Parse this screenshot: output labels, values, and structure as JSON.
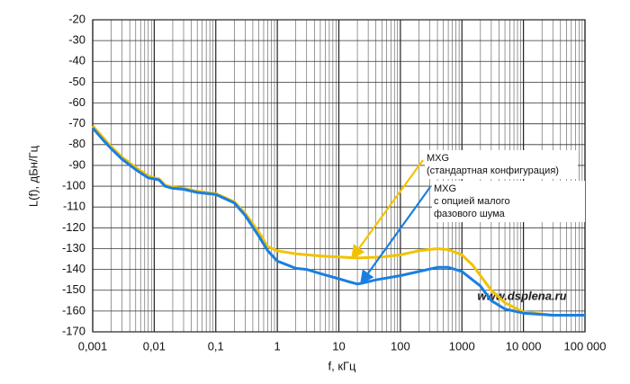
{
  "chart_data": {
    "type": "line",
    "xlabel": "f, кГц",
    "ylabel": "L(f), дБн/Гц",
    "xscale": "log",
    "grid": true,
    "xlim": [
      0.001,
      100000
    ],
    "xticks": [
      {
        "value": 0.001,
        "label": "0,001"
      },
      {
        "value": 0.01,
        "label": "0,01"
      },
      {
        "value": 0.1,
        "label": "0,1"
      },
      1,
      10,
      100,
      1000,
      {
        "value": 10000,
        "label": "10 000"
      },
      {
        "value": 100000,
        "label": "100 000"
      }
    ],
    "ylim": [
      -170,
      -20
    ],
    "yticks": [
      -20,
      -30,
      -40,
      -50,
      -60,
      -70,
      -80,
      -90,
      -100,
      -110,
      -120,
      -130,
      -140,
      -150,
      -160,
      -170
    ],
    "series": [
      {
        "name": "MXG (стандартная конфигурация)",
        "color": "#f2c200",
        "x": [
          0.001,
          0.002,
          0.003,
          0.005,
          0.008,
          0.01,
          0.012,
          0.015,
          0.02,
          0.03,
          0.05,
          0.1,
          0.2,
          0.3,
          0.5,
          0.7,
          1,
          2,
          5,
          10,
          20,
          50,
          100,
          200,
          400,
          600,
          1000,
          1500,
          2000,
          3000,
          5000,
          10000,
          30000,
          100000
        ],
        "values": [
          -71,
          -81,
          -86,
          -91,
          -95,
          -96,
          -96.5,
          -99.5,
          -100.5,
          -101,
          -102.5,
          -103.5,
          -107.5,
          -113,
          -122,
          -129,
          -131,
          -132.5,
          -133.5,
          -134,
          -134.5,
          -134,
          -133,
          -131,
          -130,
          -130.5,
          -133,
          -138,
          -143,
          -150,
          -156,
          -160.5,
          -162,
          -162
        ]
      },
      {
        "name": "MXG с опцией малого фазового шума",
        "color": "#1a7fe0",
        "x": [
          0.001,
          0.0015,
          0.002,
          0.003,
          0.005,
          0.008,
          0.01,
          0.012,
          0.015,
          0.02,
          0.03,
          0.05,
          0.1,
          0.2,
          0.3,
          0.5,
          0.7,
          1,
          1.5,
          2,
          3,
          5,
          10,
          15,
          20,
          25,
          40,
          100,
          200,
          400,
          600,
          1000,
          2000,
          3000,
          5000,
          10000,
          30000,
          100000
        ],
        "values": [
          -72,
          -78,
          -82,
          -87,
          -92,
          -96,
          -96.5,
          -97,
          -100,
          -101,
          -101.5,
          -103,
          -104,
          -108,
          -114,
          -124,
          -131,
          -136,
          -138,
          -139.5,
          -140,
          -142,
          -144.5,
          -146,
          -147,
          -146.5,
          -145,
          -143,
          -141,
          -139,
          -139,
          -141,
          -148,
          -155,
          -159,
          -161,
          -162,
          -162
        ]
      }
    ],
    "annotations": [
      [
        "MXG",
        "(стандартная конфигурация)"
      ],
      [
        "MXG",
        "с опцией малого",
        "фазового шума"
      ]
    ],
    "watermark": "www.dsplena.ru"
  }
}
